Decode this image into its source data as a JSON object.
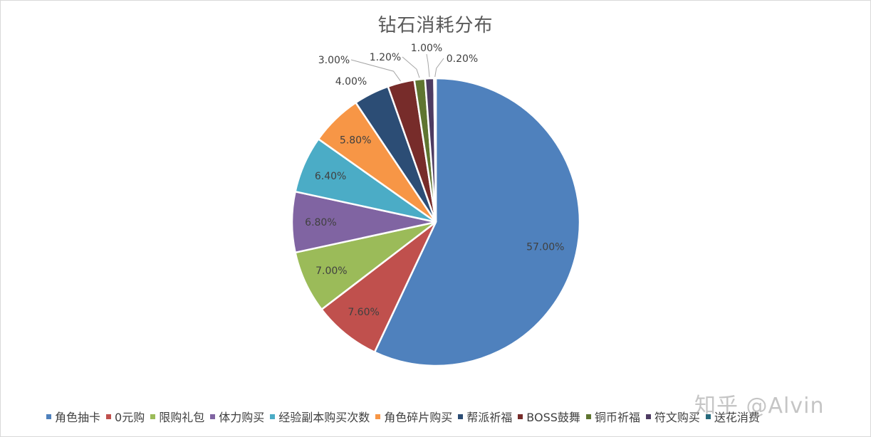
{
  "chart_data": {
    "type": "pie",
    "title": "钻石消耗分布",
    "categories": [
      "角色抽卡",
      "0元购",
      "限购礼包",
      "体力购买",
      "经验副本购买次数",
      "角色碎片购买",
      "帮派祈福",
      "BOSS鼓舞",
      "铜币祈福",
      "符文购买",
      "送花消费"
    ],
    "values": [
      57.0,
      7.6,
      7.0,
      6.8,
      6.4,
      5.8,
      4.0,
      3.0,
      1.2,
      1.0,
      0.2
    ],
    "data_labels": [
      "57.00%",
      "7.60%",
      "7.00%",
      "6.80%",
      "6.40%",
      "5.80%",
      "4.00%",
      "3.00%",
      "1.20%",
      "1.00%",
      "0.20%"
    ],
    "colors": [
      "#4f81bd",
      "#c0504d",
      "#9bbb59",
      "#8064a2",
      "#4bacc6",
      "#f79646",
      "#2c4d75",
      "#772c2a",
      "#5f7530",
      "#4d3b62",
      "#276a7c"
    ],
    "legend_position": "bottom"
  },
  "watermark": "知乎 @Alvin"
}
